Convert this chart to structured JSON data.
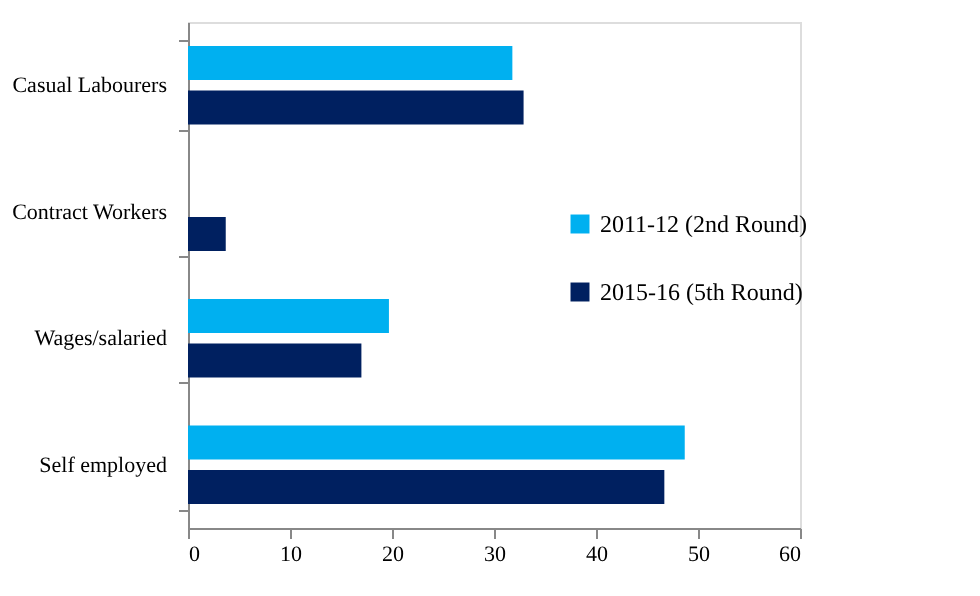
{
  "chart_data": {
    "type": "bar",
    "orientation": "horizontal",
    "categories": [
      "Casual Labourers",
      "Contract Workers",
      "Wages/salaried",
      "Self employed"
    ],
    "series": [
      {
        "name": "2011-12 (2nd Round)",
        "color": "#00b0f0",
        "values": [
          31.8,
          null,
          19.7,
          48.7
        ]
      },
      {
        "name": "2015-16 (5th Round)",
        "color": "#002060",
        "values": [
          32.9,
          3.7,
          17.0,
          46.7
        ]
      }
    ],
    "xlim": [
      0,
      60
    ],
    "xticks": [
      0,
      10,
      20,
      30,
      40,
      50,
      60
    ],
    "grid": false,
    "legend": "right"
  }
}
